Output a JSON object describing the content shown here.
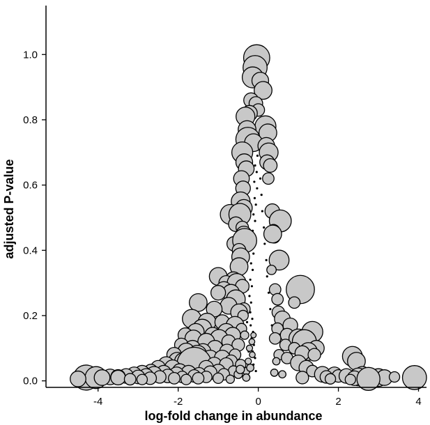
{
  "chart_data": {
    "type": "scatter",
    "title": "",
    "xlabel": "log-fold change in abundance",
    "ylabel": "adjusted P-value",
    "xlim": [
      -5.3,
      4.2
    ],
    "ylim": [
      -0.02,
      1.15
    ],
    "x_ticks": [
      -4,
      -2,
      0,
      2,
      4
    ],
    "x_tick_labels": [
      "-4",
      "-2",
      "0",
      "2",
      "4"
    ],
    "y_ticks": [
      0.0,
      0.2,
      0.4,
      0.6,
      0.8,
      1.0
    ],
    "y_tick_labels": [
      "0.0",
      "0.2",
      "0.4",
      "0.6",
      "0.8",
      "1.0"
    ],
    "grid": false,
    "legend": "none",
    "marker_fill": "#c8c8c8",
    "marker_edge": "#000000",
    "size_encoding": "marker radius varies by point (relative size 0.4–2.0)",
    "points": [
      {
        "x": -0.04,
        "y": 0.99,
        "s": 1.25
      },
      {
        "x": -0.08,
        "y": 0.96,
        "s": 1.15
      },
      {
        "x": -0.14,
        "y": 0.93,
        "s": 1.0
      },
      {
        "x": 0.05,
        "y": 0.92,
        "s": 0.8
      },
      {
        "x": 0.12,
        "y": 0.89,
        "s": 0.85
      },
      {
        "x": -0.18,
        "y": 0.86,
        "s": 0.7
      },
      {
        "x": -0.06,
        "y": 0.85,
        "s": 0.65
      },
      {
        "x": 0.0,
        "y": 0.83,
        "s": 0.6
      },
      {
        "x": -0.22,
        "y": 0.82,
        "s": 0.75
      },
      {
        "x": -0.32,
        "y": 0.81,
        "s": 0.9
      },
      {
        "x": 0.18,
        "y": 0.78,
        "s": 1.0
      },
      {
        "x": 0.24,
        "y": 0.76,
        "s": 0.85
      },
      {
        "x": -0.28,
        "y": 0.77,
        "s": 0.85
      },
      {
        "x": -0.26,
        "y": 0.74,
        "s": 1.15
      },
      {
        "x": -0.12,
        "y": 0.73,
        "s": 0.85
      },
      {
        "x": 0.2,
        "y": 0.72,
        "s": 0.8
      },
      {
        "x": 0.26,
        "y": 0.7,
        "s": 0.9
      },
      {
        "x": -0.4,
        "y": 0.7,
        "s": 1.0
      },
      {
        "x": -0.35,
        "y": 0.67,
        "s": 0.8
      },
      {
        "x": 0.22,
        "y": 0.67,
        "s": 0.7
      },
      {
        "x": 0.3,
        "y": 0.66,
        "s": 0.65
      },
      {
        "x": -0.3,
        "y": 0.65,
        "s": 0.75
      },
      {
        "x": -0.42,
        "y": 0.62,
        "s": 0.75
      },
      {
        "x": 0.25,
        "y": 0.62,
        "s": 0.55
      },
      {
        "x": -0.38,
        "y": 0.59,
        "s": 0.7
      },
      {
        "x": -0.44,
        "y": 0.55,
        "s": 0.9
      },
      {
        "x": -0.36,
        "y": 0.53,
        "s": 0.8
      },
      {
        "x": -0.7,
        "y": 0.51,
        "s": 0.95
      },
      {
        "x": -0.46,
        "y": 0.51,
        "s": 1.05
      },
      {
        "x": 0.35,
        "y": 0.52,
        "s": 0.7
      },
      {
        "x": 0.45,
        "y": 0.5,
        "s": 0.55
      },
      {
        "x": 0.55,
        "y": 0.49,
        "s": 1.05
      },
      {
        "x": -0.56,
        "y": 0.48,
        "s": 0.7
      },
      {
        "x": -0.4,
        "y": 0.47,
        "s": 0.6
      },
      {
        "x": 0.38,
        "y": 0.46,
        "s": 0.6
      },
      {
        "x": -0.36,
        "y": 0.45,
        "s": 0.75
      },
      {
        "x": 0.4,
        "y": 0.44,
        "s": 0.55
      },
      {
        "x": 0.36,
        "y": 0.45,
        "s": 0.85
      },
      {
        "x": -0.6,
        "y": 0.42,
        "s": 0.7
      },
      {
        "x": -0.34,
        "y": 0.43,
        "s": 1.15
      },
      {
        "x": -0.48,
        "y": 0.4,
        "s": 0.65
      },
      {
        "x": -0.44,
        "y": 0.38,
        "s": 0.85
      },
      {
        "x": 0.52,
        "y": 0.37,
        "s": 0.95
      },
      {
        "x": -0.48,
        "y": 0.35,
        "s": 0.85
      },
      {
        "x": 0.33,
        "y": 0.34,
        "s": 0.45
      },
      {
        "x": -1.0,
        "y": 0.32,
        "s": 0.85
      },
      {
        "x": -0.62,
        "y": 0.31,
        "s": 0.75
      },
      {
        "x": -0.8,
        "y": 0.3,
        "s": 0.7
      },
      {
        "x": -0.54,
        "y": 0.3,
        "s": 0.9
      },
      {
        "x": -0.4,
        "y": 0.29,
        "s": 0.65
      },
      {
        "x": 1.05,
        "y": 0.28,
        "s": 1.35
      },
      {
        "x": -0.86,
        "y": 0.28,
        "s": 0.75
      },
      {
        "x": 0.42,
        "y": 0.28,
        "s": 0.55
      },
      {
        "x": -0.68,
        "y": 0.27,
        "s": 0.8
      },
      {
        "x": -1.0,
        "y": 0.27,
        "s": 0.7
      },
      {
        "x": -0.56,
        "y": 0.25,
        "s": 0.9
      },
      {
        "x": 0.48,
        "y": 0.25,
        "s": 0.55
      },
      {
        "x": -1.5,
        "y": 0.24,
        "s": 0.85
      },
      {
        "x": 0.9,
        "y": 0.24,
        "s": 0.55
      },
      {
        "x": -0.74,
        "y": 0.23,
        "s": 0.8
      },
      {
        "x": -1.1,
        "y": 0.22,
        "s": 0.75
      },
      {
        "x": -0.36,
        "y": 0.22,
        "s": 0.6
      },
      {
        "x": -0.48,
        "y": 0.21,
        "s": 0.8
      },
      {
        "x": 0.5,
        "y": 0.21,
        "s": 0.6
      },
      {
        "x": -0.38,
        "y": 0.2,
        "s": 0.5
      },
      {
        "x": -1.66,
        "y": 0.19,
        "s": 0.9
      },
      {
        "x": 0.6,
        "y": 0.19,
        "s": 0.75
      },
      {
        "x": -1.28,
        "y": 0.18,
        "s": 0.85
      },
      {
        "x": -0.9,
        "y": 0.18,
        "s": 0.7
      },
      {
        "x": -0.58,
        "y": 0.17,
        "s": 0.85
      },
      {
        "x": 0.8,
        "y": 0.17,
        "s": 0.7
      },
      {
        "x": -1.4,
        "y": 0.16,
        "s": 0.9
      },
      {
        "x": 0.48,
        "y": 0.16,
        "s": 0.55
      },
      {
        "x": -0.42,
        "y": 0.16,
        "s": 0.5
      },
      {
        "x": -1.56,
        "y": 0.15,
        "s": 0.8
      },
      {
        "x": -0.8,
        "y": 0.15,
        "s": 0.8
      },
      {
        "x": 1.35,
        "y": 0.15,
        "s": 1.0
      },
      {
        "x": -1.82,
        "y": 0.14,
        "s": 0.7
      },
      {
        "x": -1.14,
        "y": 0.14,
        "s": 0.75
      },
      {
        "x": 0.72,
        "y": 0.14,
        "s": 0.65
      },
      {
        "x": -0.64,
        "y": 0.14,
        "s": 0.75
      },
      {
        "x": -0.34,
        "y": 0.14,
        "s": 0.4
      },
      {
        "x": -1.62,
        "y": 0.13,
        "s": 0.8
      },
      {
        "x": -0.98,
        "y": 0.13,
        "s": 0.85
      },
      {
        "x": 1.0,
        "y": 0.13,
        "s": 0.9
      },
      {
        "x": 0.42,
        "y": 0.13,
        "s": 0.55
      },
      {
        "x": -1.3,
        "y": 0.12,
        "s": 0.8
      },
      {
        "x": -0.74,
        "y": 0.12,
        "s": 0.65
      },
      {
        "x": 1.15,
        "y": 0.12,
        "s": 1.15
      },
      {
        "x": -1.92,
        "y": 0.11,
        "s": 0.65
      },
      {
        "x": -0.5,
        "y": 0.11,
        "s": 0.6
      },
      {
        "x": 0.68,
        "y": 0.11,
        "s": 0.55
      },
      {
        "x": -1.64,
        "y": 0.1,
        "s": 0.75
      },
      {
        "x": -1.08,
        "y": 0.1,
        "s": 0.75
      },
      {
        "x": 1.45,
        "y": 0.1,
        "s": 0.75
      },
      {
        "x": 0.9,
        "y": 0.1,
        "s": 0.55
      },
      {
        "x": -1.8,
        "y": 0.09,
        "s": 0.8
      },
      {
        "x": -1.38,
        "y": 0.09,
        "s": 0.75
      },
      {
        "x": -0.78,
        "y": 0.09,
        "s": 0.7
      },
      {
        "x": 1.25,
        "y": 0.09,
        "s": 0.85
      },
      {
        "x": -2.1,
        "y": 0.08,
        "s": 0.7
      },
      {
        "x": -1.52,
        "y": 0.08,
        "s": 0.9
      },
      {
        "x": -0.58,
        "y": 0.08,
        "s": 0.55
      },
      {
        "x": 1.1,
        "y": 0.085,
        "s": 0.7
      },
      {
        "x": 0.52,
        "y": 0.08,
        "s": 0.5
      },
      {
        "x": 1.4,
        "y": 0.08,
        "s": 0.6
      },
      {
        "x": -1.68,
        "y": 0.07,
        "s": 0.85
      },
      {
        "x": -1.2,
        "y": 0.07,
        "s": 0.75
      },
      {
        "x": -0.9,
        "y": 0.07,
        "s": 0.75
      },
      {
        "x": 2.35,
        "y": 0.075,
        "s": 0.95
      },
      {
        "x": 0.72,
        "y": 0.07,
        "s": 0.55
      },
      {
        "x": -2.02,
        "y": 0.06,
        "s": 0.85
      },
      {
        "x": -1.88,
        "y": 0.06,
        "s": 0.8
      },
      {
        "x": -1.44,
        "y": 0.06,
        "s": 0.75
      },
      {
        "x": -0.68,
        "y": 0.06,
        "s": 0.6
      },
      {
        "x": 1.0,
        "y": 0.055,
        "s": 0.75
      },
      {
        "x": 2.45,
        "y": 0.06,
        "s": 0.85
      },
      {
        "x": -2.3,
        "y": 0.05,
        "s": 0.75
      },
      {
        "x": -1.6,
        "y": 0.05,
        "s": 1.65
      },
      {
        "x": -1.1,
        "y": 0.05,
        "s": 0.7
      },
      {
        "x": -0.8,
        "y": 0.05,
        "s": 0.65
      },
      {
        "x": -0.44,
        "y": 0.05,
        "s": 0.5
      },
      {
        "x": -2.5,
        "y": 0.04,
        "s": 0.7
      },
      {
        "x": -2.14,
        "y": 0.04,
        "s": 0.75
      },
      {
        "x": -1.3,
        "y": 0.04,
        "s": 0.7
      },
      {
        "x": 1.2,
        "y": 0.04,
        "s": 0.7
      },
      {
        "x": -2.68,
        "y": 0.03,
        "s": 0.65
      },
      {
        "x": -1.96,
        "y": 0.03,
        "s": 0.7
      },
      {
        "x": -1.0,
        "y": 0.03,
        "s": 0.65
      },
      {
        "x": -0.62,
        "y": 0.03,
        "s": 0.5
      },
      {
        "x": 1.35,
        "y": 0.03,
        "s": 0.55
      },
      {
        "x": -2.9,
        "y": 0.025,
        "s": 0.7
      },
      {
        "x": -2.36,
        "y": 0.025,
        "s": 0.7
      },
      {
        "x": -1.74,
        "y": 0.025,
        "s": 0.7
      },
      {
        "x": -1.2,
        "y": 0.025,
        "s": 0.65
      },
      {
        "x": 1.6,
        "y": 0.02,
        "s": 0.75
      },
      {
        "x": -3.1,
        "y": 0.02,
        "s": 0.7
      },
      {
        "x": -2.6,
        "y": 0.02,
        "s": 0.75
      },
      {
        "x": -2.04,
        "y": 0.02,
        "s": 0.7
      },
      {
        "x": -1.48,
        "y": 0.02,
        "s": 0.65
      },
      {
        "x": -0.86,
        "y": 0.02,
        "s": 0.55
      },
      {
        "x": 1.9,
        "y": 0.02,
        "s": 0.7
      },
      {
        "x": 2.6,
        "y": 0.02,
        "s": 0.75
      },
      {
        "x": -3.3,
        "y": 0.015,
        "s": 0.7
      },
      {
        "x": -2.8,
        "y": 0.015,
        "s": 0.7
      },
      {
        "x": -2.26,
        "y": 0.015,
        "s": 0.65
      },
      {
        "x": -1.6,
        "y": 0.015,
        "s": 0.6
      },
      {
        "x": 2.0,
        "y": 0.015,
        "s": 0.6
      },
      {
        "x": 2.2,
        "y": 0.015,
        "s": 0.7
      },
      {
        "x": -3.7,
        "y": 0.012,
        "s": 0.75
      },
      {
        "x": -3.5,
        "y": 0.012,
        "s": 0.7
      },
      {
        "x": -3.0,
        "y": 0.012,
        "s": 0.65
      },
      {
        "x": -2.46,
        "y": 0.012,
        "s": 0.6
      },
      {
        "x": -1.9,
        "y": 0.012,
        "s": 0.55
      },
      {
        "x": -1.3,
        "y": 0.012,
        "s": 0.55
      },
      {
        "x": 1.7,
        "y": 0.012,
        "s": 0.6
      },
      {
        "x": 2.5,
        "y": 0.012,
        "s": 0.85
      },
      {
        "x": -4.3,
        "y": 0.01,
        "s": 1.2
      },
      {
        "x": -4.05,
        "y": 0.01,
        "s": 1.05
      },
      {
        "x": -3.9,
        "y": 0.01,
        "s": 0.75
      },
      {
        "x": -3.5,
        "y": 0.01,
        "s": 0.7
      },
      {
        "x": -2.7,
        "y": 0.008,
        "s": 0.6
      },
      {
        "x": -2.1,
        "y": 0.008,
        "s": 0.55
      },
      {
        "x": -1.5,
        "y": 0.008,
        "s": 0.55
      },
      {
        "x": -1.0,
        "y": 0.008,
        "s": 0.5
      },
      {
        "x": 2.4,
        "y": 0.008,
        "s": 0.7
      },
      {
        "x": 3.0,
        "y": 0.01,
        "s": 0.85
      },
      {
        "x": 3.15,
        "y": 0.01,
        "s": 0.75
      },
      {
        "x": 3.4,
        "y": 0.012,
        "s": 0.5
      },
      {
        "x": 3.9,
        "y": 0.01,
        "s": 1.15
      },
      {
        "x": 1.1,
        "y": 0.01,
        "s": 0.6
      },
      {
        "x": 1.8,
        "y": 0.006,
        "s": 0.5
      },
      {
        "x": 2.75,
        "y": 0.006,
        "s": 1.1
      },
      {
        "x": 2.3,
        "y": 0.004,
        "s": 0.5
      },
      {
        "x": -4.5,
        "y": 0.006,
        "s": 0.75
      },
      {
        "x": -3.2,
        "y": 0.005,
        "s": 0.55
      },
      {
        "x": -2.9,
        "y": 0.004,
        "s": 0.5
      },
      {
        "x": -1.8,
        "y": 0.004,
        "s": 0.5
      },
      {
        "x": -0.5,
        "y": 0.02,
        "s": 0.4
      },
      {
        "x": -0.3,
        "y": 0.03,
        "s": 0.35
      },
      {
        "x": -0.2,
        "y": 0.04,
        "s": 0.35
      },
      {
        "x": -0.45,
        "y": 0.035,
        "s": 0.4
      },
      {
        "x": -0.25,
        "y": 0.06,
        "s": 0.3
      },
      {
        "x": -0.15,
        "y": 0.08,
        "s": 0.28
      },
      {
        "x": -0.22,
        "y": 0.1,
        "s": 0.3
      },
      {
        "x": -0.16,
        "y": 0.12,
        "s": 0.28
      },
      {
        "x": -0.12,
        "y": 0.14,
        "s": 0.26
      },
      {
        "x": -0.3,
        "y": 0.01,
        "s": 0.35
      },
      {
        "x": -0.7,
        "y": 0.005,
        "s": 0.4
      },
      {
        "x": 0.4,
        "y": 0.025,
        "s": 0.35
      },
      {
        "x": 0.45,
        "y": 0.06,
        "s": 0.35
      },
      {
        "x": 0.6,
        "y": 0.02,
        "s": 0.35
      }
    ],
    "dots": [
      {
        "x": -0.05,
        "y": 0.72
      },
      {
        "x": -0.02,
        "y": 0.69
      },
      {
        "x": -0.08,
        "y": 0.66
      },
      {
        "x": -0.04,
        "y": 0.64
      },
      {
        "x": -0.1,
        "y": 0.61
      },
      {
        "x": -0.03,
        "y": 0.59
      },
      {
        "x": -0.09,
        "y": 0.56
      },
      {
        "x": -0.06,
        "y": 0.54
      },
      {
        "x": -0.12,
        "y": 0.51
      },
      {
        "x": -0.08,
        "y": 0.49
      },
      {
        "x": -0.14,
        "y": 0.46
      },
      {
        "x": -0.1,
        "y": 0.44
      },
      {
        "x": -0.16,
        "y": 0.41
      },
      {
        "x": -0.12,
        "y": 0.39
      },
      {
        "x": -0.18,
        "y": 0.36
      },
      {
        "x": -0.14,
        "y": 0.34
      },
      {
        "x": -0.2,
        "y": 0.31
      },
      {
        "x": -0.16,
        "y": 0.29
      },
      {
        "x": -0.22,
        "y": 0.26
      },
      {
        "x": -0.18,
        "y": 0.24
      },
      {
        "x": -0.2,
        "y": 0.21
      },
      {
        "x": -0.15,
        "y": 0.19
      },
      {
        "x": -0.19,
        "y": 0.17
      },
      {
        "x": -0.13,
        "y": 0.15
      },
      {
        "x": -0.17,
        "y": 0.13
      },
      {
        "x": -0.11,
        "y": 0.11
      },
      {
        "x": -0.14,
        "y": 0.09
      },
      {
        "x": -0.08,
        "y": 0.07
      },
      {
        "x": -0.12,
        "y": 0.05
      },
      {
        "x": -0.06,
        "y": 0.03
      },
      {
        "x": 0.05,
        "y": 0.62
      },
      {
        "x": 0.08,
        "y": 0.57
      },
      {
        "x": 0.1,
        "y": 0.52
      },
      {
        "x": 0.14,
        "y": 0.47
      },
      {
        "x": 0.16,
        "y": 0.42
      },
      {
        "x": 0.2,
        "y": 0.37
      },
      {
        "x": 0.22,
        "y": 0.32
      },
      {
        "x": 0.26,
        "y": 0.27
      },
      {
        "x": 0.3,
        "y": 0.22
      },
      {
        "x": 0.34,
        "y": 0.17
      },
      {
        "x": 0.38,
        "y": 0.12
      },
      {
        "x": 0.42,
        "y": 0.02
      },
      {
        "x": 0.54,
        "y": 0.02
      },
      {
        "x": -0.26,
        "y": 0.28
      },
      {
        "x": -0.28,
        "y": 0.18
      },
      {
        "x": -0.24,
        "y": 0.09
      },
      {
        "x": -0.3,
        "y": 0.06
      },
      {
        "x": -0.34,
        "y": 0.025
      }
    ]
  }
}
